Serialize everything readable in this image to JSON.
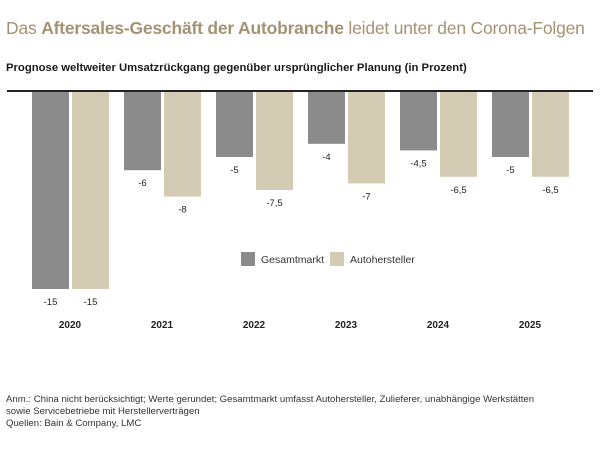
{
  "header": {
    "title_part1": "Das ",
    "title_bold": "Aftersales-Geschäft der Autobranche",
    "title_part2": " leidet unter den Corona-Folgen",
    "subtitle": "Prognose weltweiter Umsatzrückgang gegenüber ursprünglicher Planung (in Prozent)"
  },
  "chart_data": {
    "type": "bar",
    "title": "Prognose weltweiter Umsatzrückgang gegenüber ursprünglicher Planung (in Prozent)",
    "categories": [
      "2020",
      "2021",
      "2022",
      "2023",
      "2024",
      "2025"
    ],
    "series": [
      {
        "name": "Gesamtmarkt",
        "color": "#8b8b8b",
        "values": [
          -15,
          -6,
          -5,
          -4,
          -4.5,
          -5
        ],
        "labels": [
          "-15",
          "-6",
          "-5",
          "-4",
          "-4,5",
          "-5"
        ]
      },
      {
        "name": "Autohersteller",
        "color": "#d4cbb5",
        "values": [
          -15,
          -8,
          -7.5,
          -7,
          -6.5,
          -6.5
        ],
        "labels": [
          "-15",
          "-8",
          "-7,5",
          "-7",
          "-6,5",
          "-6,5"
        ]
      }
    ],
    "ylim": [
      -15,
      0
    ],
    "legend": "center-right",
    "grid": false
  },
  "notes": {
    "line1": "Anm.: China nicht berücksichtigt; Werte gerundet; Gesamtmarkt umfasst Autohersteller, Zulieferer, unabhängige Werkstätten",
    "line2": "sowie Servicebetriebe mit Herstellerverträgen",
    "line3": "Quellen: Bain & Company, LMC"
  }
}
